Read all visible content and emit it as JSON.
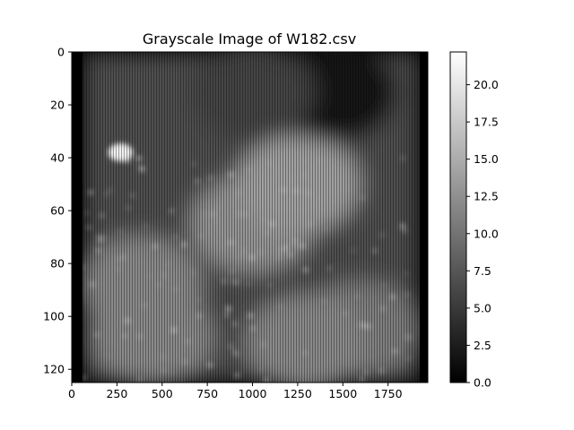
{
  "chart_data": {
    "type": "heatmap",
    "title": "Grayscale Image of W182.csv",
    "colormap": "gray",
    "xlim": [
      0,
      1970
    ],
    "ylim": [
      125,
      0
    ],
    "x_ticks": [
      0,
      250,
      500,
      750,
      1000,
      1250,
      1500,
      1750
    ],
    "x_tick_labels": [
      "0",
      "250",
      "500",
      "750",
      "1000",
      "1250",
      "1500",
      "1750"
    ],
    "y_ticks": [
      0,
      20,
      40,
      60,
      80,
      100,
      120
    ],
    "y_tick_labels": [
      "0",
      "20",
      "40",
      "60",
      "80",
      "100",
      "120"
    ],
    "colorbar": {
      "range": [
        0,
        22.2
      ],
      "ticks": [
        0,
        2.5,
        5,
        7.5,
        10,
        12.5,
        15,
        17.5,
        20
      ],
      "tick_labels": [
        "0.0",
        "2.5",
        "5.0",
        "7.5",
        "10.0",
        "12.5",
        "15.0",
        "17.5",
        "20.0"
      ]
    },
    "data_columns": [
      60,
      1925
    ],
    "features": [
      {
        "x": 1000,
        "y": 65,
        "value": 13
      },
      {
        "x": 1250,
        "y": 50,
        "value": 14
      },
      {
        "x": 380,
        "y": 88,
        "value": 12
      },
      {
        "x": 270,
        "y": 38,
        "value": 21
      },
      {
        "x": 440,
        "y": 108,
        "value": 12
      },
      {
        "x": 1600,
        "y": 105,
        "value": 11
      },
      {
        "x": 1450,
        "y": 15,
        "value": 2
      },
      {
        "x": 1300,
        "y": 110,
        "value": 12
      },
      {
        "x": 1000,
        "y": 15,
        "value": 6
      }
    ]
  }
}
